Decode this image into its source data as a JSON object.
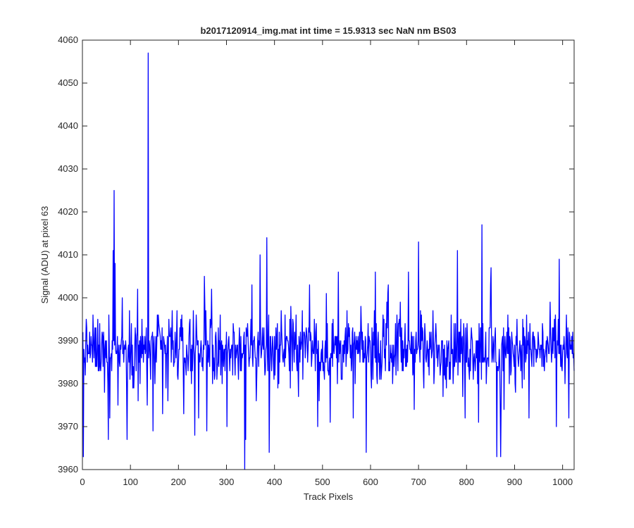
{
  "chart_data": {
    "type": "line",
    "title": "b2017120914_img.mat int time = 15.9313 sec  NaN nm BS03",
    "xlabel": "Track Pixels",
    "ylabel": "Signal (ADU) at pixel 63",
    "xlim": [
      0,
      1024
    ],
    "ylim": [
      3960,
      4060
    ],
    "xticks": [
      0,
      100,
      200,
      300,
      400,
      500,
      600,
      700,
      800,
      900,
      1000
    ],
    "yticks": [
      3960,
      3970,
      3980,
      3990,
      4000,
      4010,
      4020,
      4030,
      4040,
      4050,
      4060
    ],
    "grid": false,
    "legend": "none",
    "series": [
      {
        "color": "#0000ff",
        "x_start": 1,
        "x_step": 1,
        "baseline": 3988,
        "noise_amplitude": 7,
        "spikes": [
          {
            "x": 2,
            "y": 3963
          },
          {
            "x": 54,
            "y": 3967
          },
          {
            "x": 64,
            "y": 4011
          },
          {
            "x": 66,
            "y": 4025
          },
          {
            "x": 68,
            "y": 4008
          },
          {
            "x": 93,
            "y": 3967
          },
          {
            "x": 135,
            "y": 3975
          },
          {
            "x": 137,
            "y": 4057
          },
          {
            "x": 147,
            "y": 3969
          },
          {
            "x": 234,
            "y": 3968
          },
          {
            "x": 338,
            "y": 3960
          },
          {
            "x": 340,
            "y": 3967
          },
          {
            "x": 370,
            "y": 4010
          },
          {
            "x": 384,
            "y": 4014
          },
          {
            "x": 389,
            "y": 3964
          },
          {
            "x": 591,
            "y": 3964
          },
          {
            "x": 700,
            "y": 4013
          },
          {
            "x": 781,
            "y": 4011
          },
          {
            "x": 832,
            "y": 4017
          },
          {
            "x": 863,
            "y": 3963
          },
          {
            "x": 871,
            "y": 3963
          },
          {
            "x": 993,
            "y": 4009
          },
          {
            "x": 1013,
            "y": 3972
          }
        ]
      }
    ]
  }
}
